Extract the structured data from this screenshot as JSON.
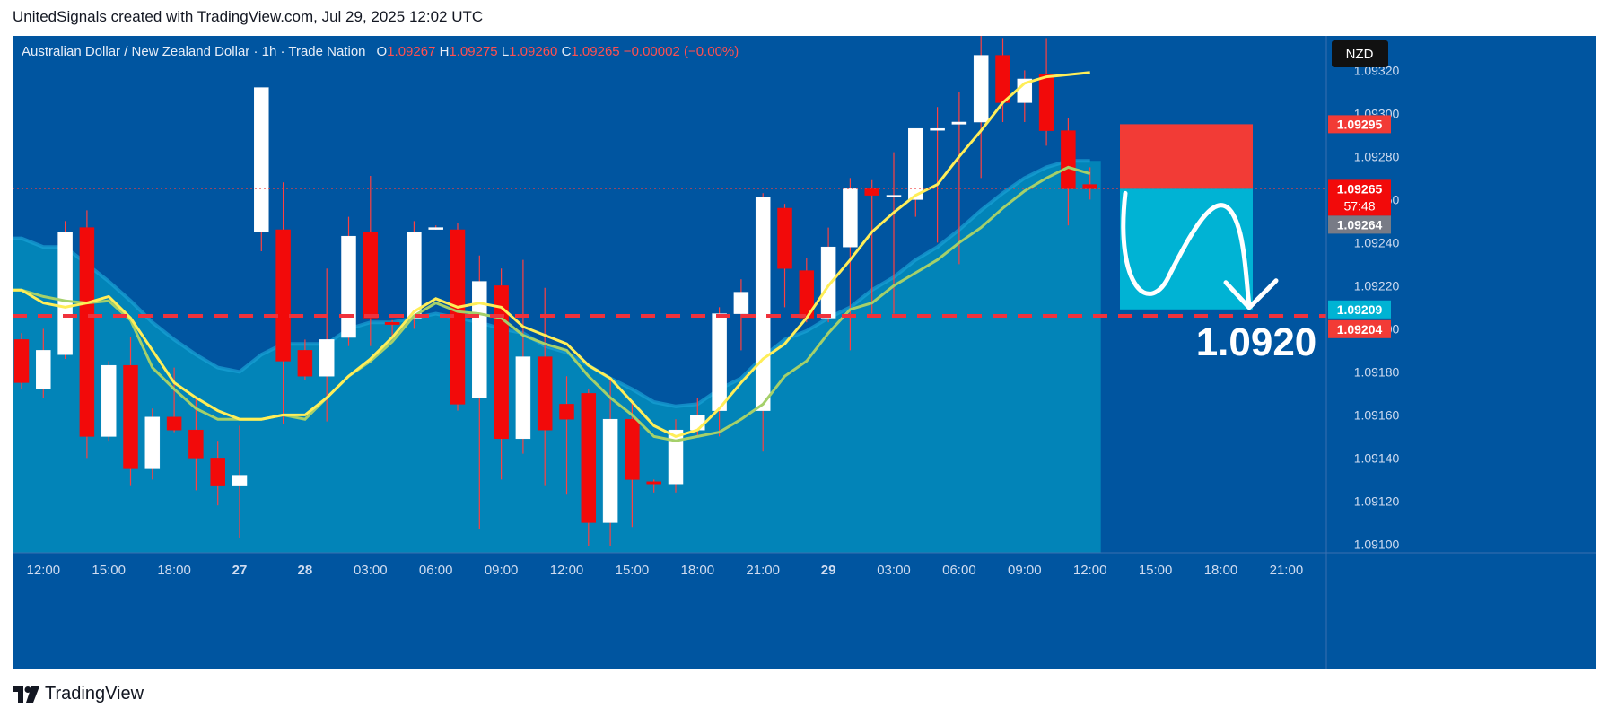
{
  "header": {
    "text": "UnitedSignals created with TradingView.com, Jul 29, 2025 12:02 UTC"
  },
  "footer": {
    "brand": "TradingView"
  },
  "colors": {
    "background": "#0055a0",
    "area_fill": "#0284b8",
    "up_candle": "#ffffff",
    "down_candle": "#f20a0a",
    "wick": "#ff4040",
    "ma_fast": "#ffee58",
    "ma_slow": "#a5d06a",
    "dash_line": "#f0323c",
    "stop_zone": "#f23b36",
    "target_zone": "#00b3d4",
    "axis_text": "#d0dcf0"
  },
  "chart_data": {
    "type": "candlestick",
    "symbol": "Australian Dollar / New Zealand Dollar · 1h · Trade Nation",
    "ohlc_text": {
      "o_label": "O",
      "o": "1.09267",
      "h_label": "H",
      "h": "1.09275",
      "l_label": "L",
      "l": "1.09260",
      "c_label": "C",
      "c": "1.09265",
      "change": "−0.00002 (−0.00%)"
    },
    "currency": "NZD",
    "ylim": [
      1.09096,
      1.09336
    ],
    "y_ticks": [
      "1.09100",
      "1.09120",
      "1.09140",
      "1.09160",
      "1.09180",
      "1.09200",
      "1.09220",
      "1.09240",
      "1.09260",
      "1.09280",
      "1.09300",
      "1.09320"
    ],
    "x_ticks": [
      {
        "label": "12:00",
        "idx": 1
      },
      {
        "label": "15:00",
        "idx": 4
      },
      {
        "label": "18:00",
        "idx": 7
      },
      {
        "label": "27",
        "idx": 10
      },
      {
        "label": "28",
        "idx": 13
      },
      {
        "label": "03:00",
        "idx": 16
      },
      {
        "label": "06:00",
        "idx": 19
      },
      {
        "label": "09:00",
        "idx": 22
      },
      {
        "label": "12:00",
        "idx": 25
      },
      {
        "label": "15:00",
        "idx": 28
      },
      {
        "label": "18:00",
        "idx": 31
      },
      {
        "label": "21:00",
        "idx": 34
      },
      {
        "label": "29",
        "idx": 37
      },
      {
        "label": "03:00",
        "idx": 40
      },
      {
        "label": "06:00",
        "idx": 43
      },
      {
        "label": "09:00",
        "idx": 46
      },
      {
        "label": "12:00",
        "idx": 49
      },
      {
        "label": "15:00",
        "idx": 52
      },
      {
        "label": "18:00",
        "idx": 55
      },
      {
        "label": "21:00",
        "idx": 58
      }
    ],
    "candles": [
      [
        1.09195,
        1.09198,
        1.09172,
        1.09175
      ],
      [
        1.09172,
        1.092,
        1.09168,
        1.0919
      ],
      [
        1.09188,
        1.0925,
        1.09186,
        1.09245
      ],
      [
        1.09247,
        1.09255,
        1.0914,
        1.0915
      ],
      [
        1.0915,
        1.09185,
        1.09148,
        1.09183
      ],
      [
        1.09183,
        1.09196,
        1.09127,
        1.09135
      ],
      [
        1.09135,
        1.09163,
        1.0913,
        1.09159
      ],
      [
        1.09159,
        1.09182,
        1.09152,
        1.09153
      ],
      [
        1.09153,
        1.09168,
        1.09125,
        1.0914
      ],
      [
        1.0914,
        1.09148,
        1.09118,
        1.09127
      ],
      [
        1.09127,
        1.09155,
        1.09103,
        1.09132
      ],
      [
        1.09245,
        1.09312,
        1.09236,
        1.09312
      ],
      [
        1.09246,
        1.09268,
        1.09156,
        1.09185
      ],
      [
        1.0919,
        1.09195,
        1.09176,
        1.09178
      ],
      [
        1.09178,
        1.09228,
        1.09157,
        1.09195
      ],
      [
        1.09196,
        1.09252,
        1.09192,
        1.09243
      ],
      [
        1.09245,
        1.09271,
        1.09192,
        1.09205
      ],
      [
        1.09203,
        1.09204,
        1.09196,
        1.09202
      ],
      [
        1.09205,
        1.0925,
        1.092,
        1.09245
      ],
      [
        1.09247,
        1.09248,
        1.09246,
        1.09247
      ],
      [
        1.09246,
        1.09249,
        1.09162,
        1.09165
      ],
      [
        1.09168,
        1.09234,
        1.09107,
        1.09222
      ],
      [
        1.0922,
        1.09228,
        1.0913,
        1.09149
      ],
      [
        1.09149,
        1.09232,
        1.09142,
        1.09187
      ],
      [
        1.09187,
        1.09219,
        1.09127,
        1.09153
      ],
      [
        1.09165,
        1.09178,
        1.09123,
        1.09158
      ],
      [
        1.0917,
        1.09172,
        1.09099,
        1.0911
      ],
      [
        1.0911,
        1.09176,
        1.09099,
        1.09158
      ],
      [
        1.09158,
        1.09166,
        1.09108,
        1.0913
      ],
      [
        1.09129,
        1.0913,
        1.09124,
        1.09128
      ],
      [
        1.09128,
        1.09158,
        1.09124,
        1.09153
      ],
      [
        1.09153,
        1.09168,
        1.0915,
        1.0916
      ],
      [
        1.09162,
        1.0921,
        1.0915,
        1.09207
      ],
      [
        1.09207,
        1.09223,
        1.0919,
        1.09217
      ],
      [
        1.09162,
        1.09263,
        1.09143,
        1.09261
      ],
      [
        1.09256,
        1.09258,
        1.0921,
        1.09228
      ],
      [
        1.09227,
        1.09233,
        1.09203,
        1.09205
      ],
      [
        1.09205,
        1.09247,
        1.09203,
        1.09238
      ],
      [
        1.09238,
        1.0927,
        1.0919,
        1.09265
      ],
      [
        1.09265,
        1.09269,
        1.09207,
        1.09262
      ],
      [
        1.09262,
        1.09282,
        1.09207,
        1.09262
      ],
      [
        1.0926,
        1.09293,
        1.09252,
        1.09293
      ],
      [
        1.09293,
        1.09303,
        1.0924,
        1.09293
      ],
      [
        1.09295,
        1.0931,
        1.0923,
        1.09296
      ],
      [
        1.09296,
        1.09345,
        1.0927,
        1.09327
      ],
      [
        1.09327,
        1.09335,
        1.09296,
        1.09305
      ],
      [
        1.09305,
        1.0932,
        1.09296,
        1.09316
      ],
      [
        1.09318,
        1.09335,
        1.09285,
        1.09292
      ],
      [
        1.09292,
        1.09298,
        1.09248,
        1.09265
      ],
      [
        1.09267,
        1.09275,
        1.0926,
        1.09265
      ]
    ],
    "ma_fast": [
      1.09218,
      1.09212,
      1.0921,
      1.09212,
      1.09215,
      1.09205,
      1.0919,
      1.09175,
      1.09168,
      1.09162,
      1.09158,
      1.09158,
      1.0916,
      1.0916,
      1.09168,
      1.09178,
      1.09186,
      1.09196,
      1.09208,
      1.09214,
      1.0921,
      1.09212,
      1.0921,
      1.09201,
      1.09197,
      1.09193,
      1.09183,
      1.09177,
      1.09166,
      1.09155,
      1.0915,
      1.09153,
      1.09163,
      1.09175,
      1.09186,
      1.09193,
      1.09205,
      1.0922,
      1.09232,
      1.09245,
      1.09254,
      1.09262,
      1.09267,
      1.0928,
      1.09292,
      1.09305,
      1.09314,
      1.09317,
      1.09318,
      1.09319
    ],
    "ma_slow": [
      1.09218,
      1.09215,
      1.09213,
      1.09212,
      1.09213,
      1.09204,
      1.09182,
      1.09172,
      1.09163,
      1.09158,
      1.09158,
      1.09158,
      1.0916,
      1.09158,
      1.09168,
      1.09178,
      1.09185,
      1.09194,
      1.09206,
      1.09212,
      1.09208,
      1.09207,
      1.09205,
      1.09197,
      1.09193,
      1.0919,
      1.09178,
      1.09168,
      1.0916,
      1.0915,
      1.09148,
      1.0915,
      1.09152,
      1.09158,
      1.09165,
      1.09178,
      1.09185,
      1.09198,
      1.09209,
      1.09212,
      1.0922,
      1.09226,
      1.09232,
      1.0924,
      1.09247,
      1.09256,
      1.09264,
      1.0927,
      1.09275,
      1.09272
    ],
    "area_upper": [
      1.09242,
      1.09238,
      1.09238,
      1.0923,
      1.09222,
      1.09213,
      1.09203,
      1.09195,
      1.09188,
      1.09182,
      1.0918,
      1.09188,
      1.09193,
      1.09193,
      1.09193,
      1.092,
      1.09203,
      1.09203,
      1.09205,
      1.09207,
      1.09205,
      1.09203,
      1.092,
      1.09198,
      1.09192,
      1.09189,
      1.09183,
      1.09177,
      1.09172,
      1.09166,
      1.09164,
      1.09165,
      1.09172,
      1.09177,
      1.09187,
      1.09195,
      1.09199,
      1.09205,
      1.0921,
      1.09218,
      1.09224,
      1.09232,
      1.09238,
      1.09246,
      1.09255,
      1.09263,
      1.0927,
      1.09275,
      1.09278,
      1.09278
    ],
    "dashed_line": 1.09206,
    "price_labels": {
      "stop": "1.09295",
      "current": "1.09265",
      "countdown": "57:48",
      "ma_value": "1.09264",
      "target": "1.09209",
      "level": "1.09204"
    },
    "zones": {
      "stop": [
        1.09265,
        1.09295
      ],
      "target": [
        1.09209,
        1.09265
      ]
    },
    "annotation": "1.0920"
  }
}
